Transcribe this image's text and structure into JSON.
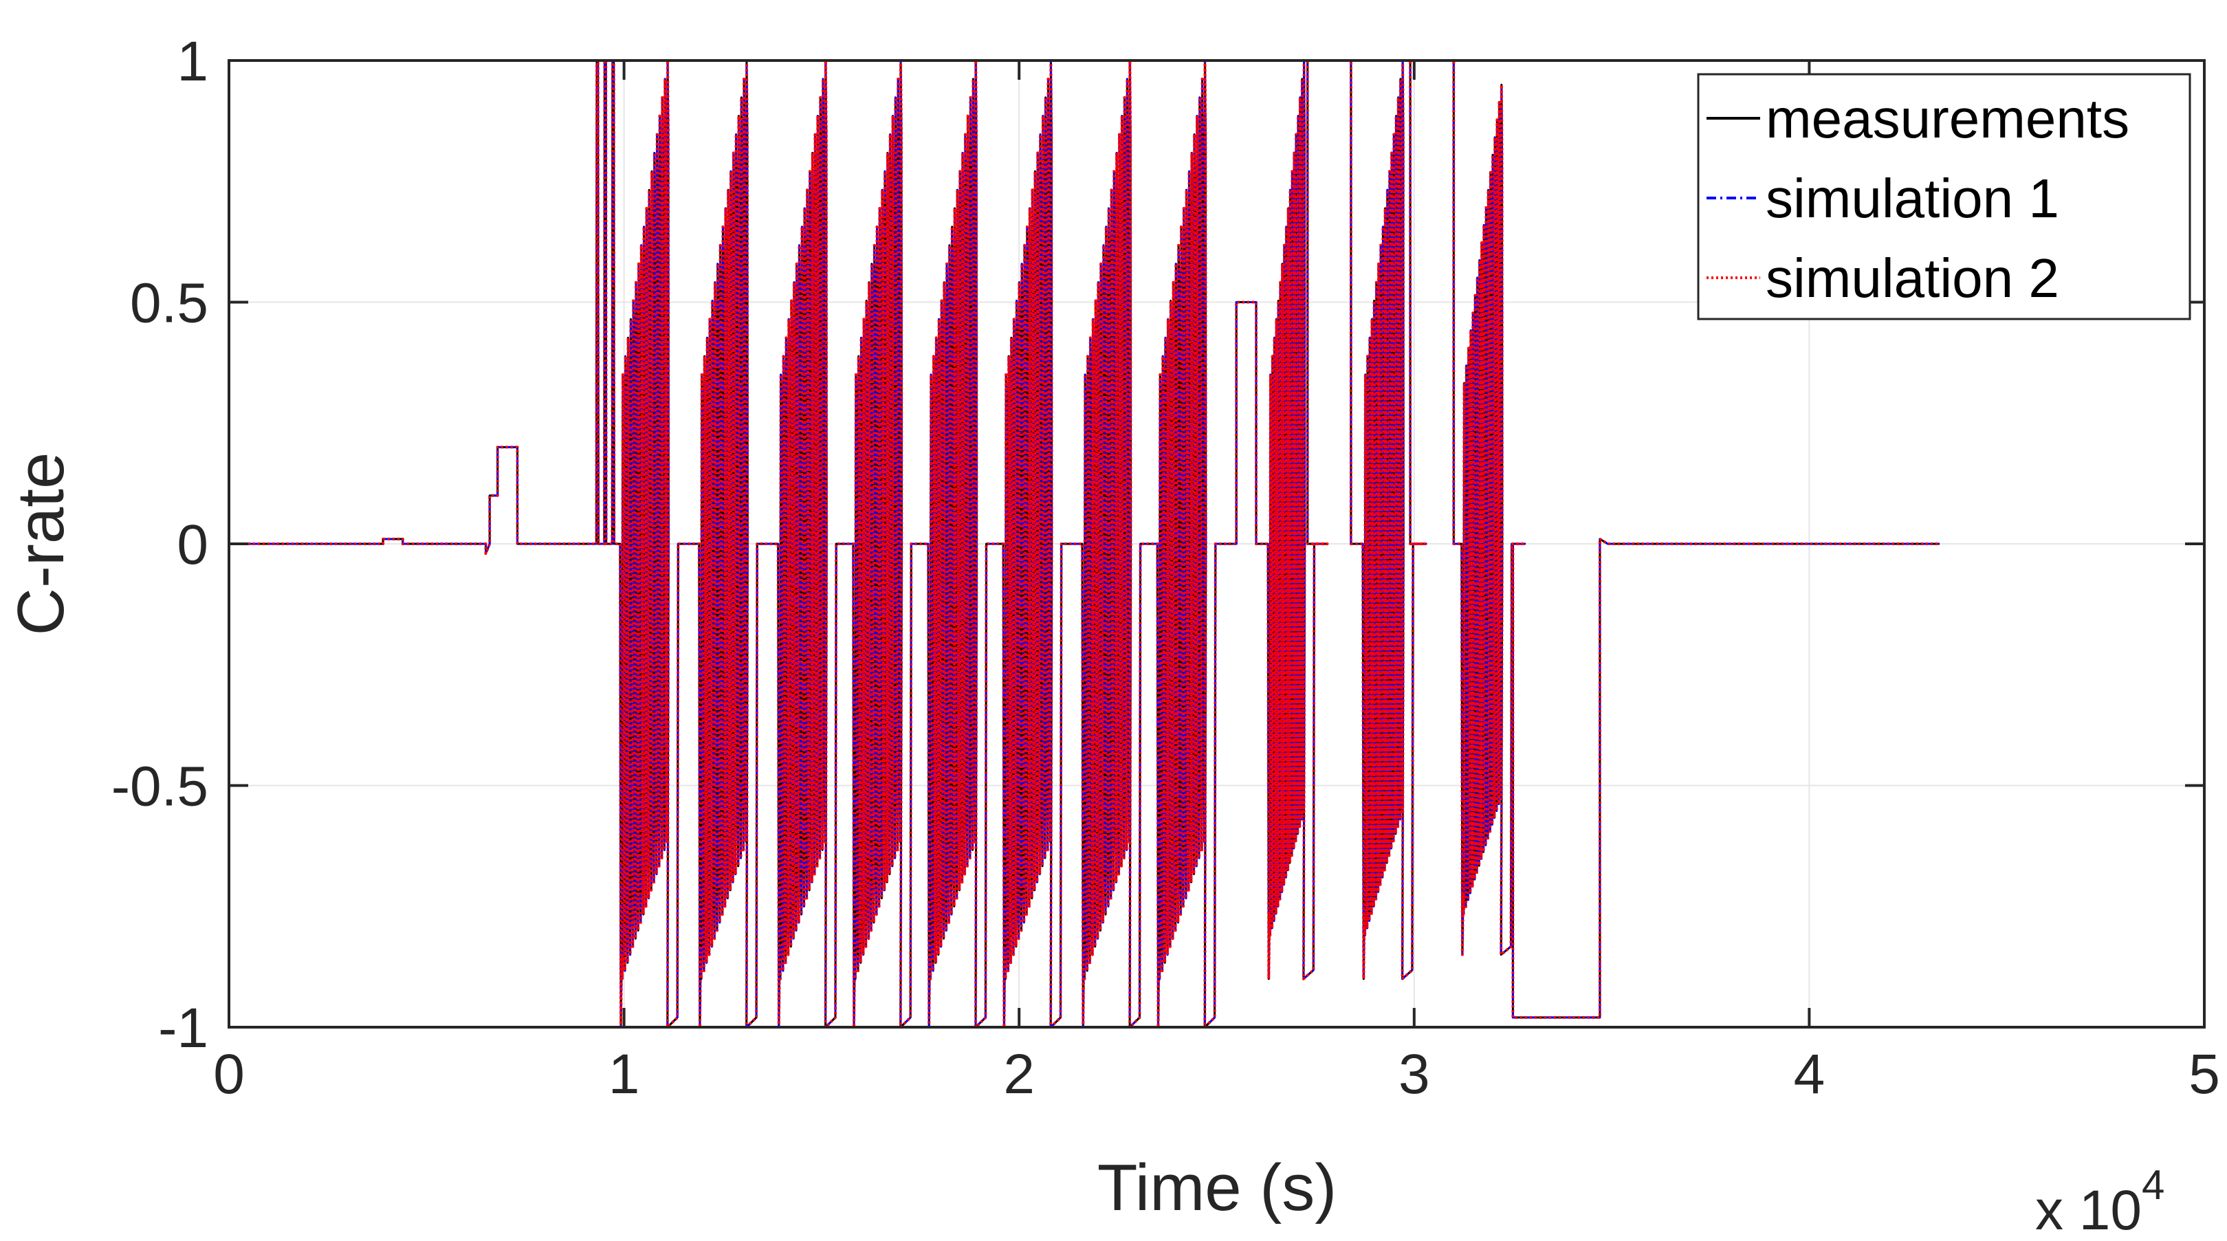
{
  "chart_data": {
    "type": "line",
    "xlabel": "Time (s)",
    "ylabel": "C-rate",
    "x_multiplier": "x 10",
    "x_multiplier_exponent": "4",
    "xlim": [
      0,
      5
    ],
    "ylim": [
      -1,
      1
    ],
    "x_ticks": [
      "0",
      "1",
      "2",
      "3",
      "4",
      "5"
    ],
    "y_ticks": [
      "-1",
      "-0.5",
      "0",
      "0.5",
      "1"
    ],
    "grid": true,
    "legend_position": "top-right",
    "series": [
      {
        "name": "measurements",
        "color": "#000000",
        "style": "solid"
      },
      {
        "name": "simulation 1",
        "color": "#0000ff",
        "style": "dash-dot"
      },
      {
        "name": "simulation 2",
        "color": "#ff0000",
        "style": "dotted"
      }
    ],
    "profile": {
      "baseline": [
        [
          0,
          0
        ],
        [
          0.39,
          0
        ],
        [
          0.39,
          0.01
        ],
        [
          0.44,
          0.01
        ],
        [
          0.44,
          0
        ],
        [
          0.65,
          0
        ],
        [
          0.65,
          -0.02
        ],
        [
          0.66,
          0
        ],
        [
          0.66,
          0.1
        ],
        [
          0.68,
          0.1
        ],
        [
          0.68,
          0.2
        ],
        [
          0.73,
          0.2
        ],
        [
          0.73,
          0
        ],
        [
          0.92,
          0
        ]
      ],
      "early_spikes_x": [
        0.93,
        0.95,
        0.97
      ],
      "pulse_cycles_start_x": [
        0.99,
        1.19,
        1.39,
        1.58,
        1.77,
        1.96,
        2.16,
        2.35
      ],
      "pulse_cycle_width": 0.12,
      "pulse_cycle_min": -1,
      "pulse_cycle_max": 1,
      "half_rate_step": [
        2.55,
        2.6,
        0.5
      ],
      "charge_plateaus": [
        [
          2.73,
          2.84,
          1
        ],
        [
          2.99,
          3.1,
          1
        ]
      ],
      "late_cycles_start_x": [
        2.63,
        2.87,
        3.12
      ],
      "discharge_plateau": [
        3.25,
        3.47,
        -0.98
      ],
      "rest_end_x": 4.33
    }
  }
}
